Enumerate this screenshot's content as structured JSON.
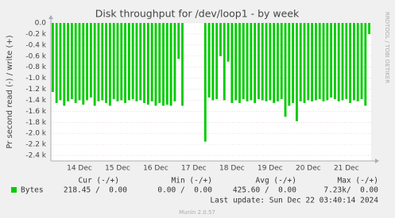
{
  "chart_data": {
    "type": "bar",
    "title": "Disk throughput for /dev/loop1 - by week",
    "y_label": "Pr second read (-) / write (+)",
    "side_label": "RRDTOOL / TOBI OETIKER",
    "categories": [
      null,
      null,
      null,
      null,
      null,
      null,
      null,
      "14 Dec",
      null,
      null,
      null,
      null,
      null,
      null,
      null,
      null,
      null,
      "15 Dec",
      null,
      null,
      null,
      null,
      null,
      null,
      null,
      null,
      null,
      "16 Dec",
      null,
      null,
      null,
      null,
      null,
      null,
      null,
      null,
      null,
      "17 Dec",
      null,
      null,
      null,
      null,
      null,
      null,
      null,
      null,
      null,
      "18 Dec",
      null,
      null,
      null,
      null,
      null,
      null,
      null,
      null,
      null,
      "19 Dec",
      null,
      null,
      null,
      null,
      null,
      null,
      null,
      null,
      null,
      "20 Dec",
      null,
      null,
      null,
      null,
      null,
      null,
      null,
      null,
      null,
      "21 Dec",
      null,
      null,
      null,
      null,
      null,
      null
    ],
    "series": [
      {
        "name": "Bytes",
        "color": "#00cc00",
        "values": [
          -1.25,
          -1.45,
          -1.4,
          -1.5,
          -1.42,
          -1.38,
          -1.45,
          -1.4,
          -1.48,
          -1.4,
          -1.35,
          -1.5,
          -1.42,
          -1.4,
          -1.45,
          -1.5,
          -1.38,
          -1.42,
          -1.4,
          -1.45,
          -1.4,
          -1.38,
          -1.42,
          -1.4,
          -1.45,
          -1.48,
          -1.42,
          -1.5,
          -1.45,
          -1.5,
          -1.48,
          -1.5,
          -1.42,
          -0.65,
          -1.5,
          0,
          0,
          0,
          0,
          0,
          -2.15,
          -1.35,
          -1.4,
          -1.38,
          -0.6,
          -1.4,
          -0.7,
          -1.45,
          -1.4,
          -1.45,
          -1.38,
          -1.42,
          -1.4,
          -1.45,
          -1.38,
          -1.4,
          -1.42,
          -1.4,
          -1.45,
          -1.42,
          -1.38,
          -1.7,
          -1.5,
          -1.45,
          -1.78,
          -1.42,
          -1.45,
          -1.4,
          -1.42,
          -1.4,
          -1.38,
          -1.42,
          -1.4,
          -1.35,
          -1.38,
          -1.42,
          -1.4,
          -1.38,
          -1.45,
          -1.4,
          -1.42,
          -1.38,
          -1.5,
          -0.2
        ]
      }
    ],
    "ylim": [
      -2.5,
      0
    ],
    "yticks": [
      {
        "value": 0,
        "label": "0.0"
      },
      {
        "value": -0.2,
        "label": "-0.2 k"
      },
      {
        "value": -0.4,
        "label": "-0.4 k"
      },
      {
        "value": -0.6,
        "label": "-0.6 k"
      },
      {
        "value": -0.8,
        "label": "-0.8 k"
      },
      {
        "value": -1.0,
        "label": "-1.0 k"
      },
      {
        "value": -1.2,
        "label": "-1.2 k"
      },
      {
        "value": -1.4,
        "label": "-1.4 k"
      },
      {
        "value": -1.6,
        "label": "-1.6 k"
      },
      {
        "value": -1.8,
        "label": "-1.8 k"
      },
      {
        "value": -2.0,
        "label": "-2.0 k"
      },
      {
        "value": -2.2,
        "label": "-2.2 k"
      },
      {
        "value": -2.4,
        "label": "-2.4 k"
      }
    ],
    "grid": true,
    "legend_table": {
      "headers": [
        "Cur (-/+)",
        "Min (-/+)",
        "Avg (-/+)",
        "Max (-/+)"
      ],
      "row": [
        "218.45 /  0.00",
        "0.00 /  0.00",
        "425.60 /  0.00",
        "7.23k/  0.00"
      ]
    },
    "last_update": "Last update: Sun Dec 22 03:40:14 2024",
    "footer": "Munin 2.0.57"
  }
}
